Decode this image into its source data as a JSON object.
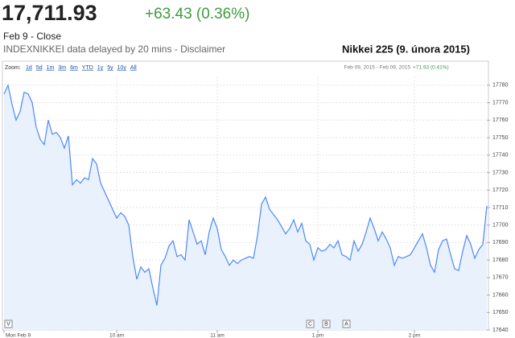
{
  "quote": {
    "price": "17,711.93",
    "change": "+63.43 (0.36%)",
    "status": "Feb 9 - Close",
    "source": "INDEXNIKKEI data delayed by 20 mins - Disclaimer"
  },
  "toolbar": {
    "zoom_label": "Zoom:",
    "options": [
      "1d",
      "5d",
      "1m",
      "3m",
      "6m",
      "YTD",
      "1y",
      "5y",
      "10y",
      "All"
    ],
    "range": "Feb 09, 2015 - Feb 09, 2015",
    "range_change": "+71.93 (0.41%)"
  },
  "chart_data": {
    "type": "line",
    "title": "Nikkei 225 (9. února 2015)",
    "series": [
      {
        "color": "#4d89f9",
        "values": [
          17775,
          17780,
          17769,
          17760,
          17765,
          17776,
          17775,
          17770,
          17756,
          17749,
          17746,
          17760,
          17752,
          17753,
          17750,
          17744,
          17751,
          17723,
          17726,
          17724,
          17727,
          17726,
          17738,
          17735,
          17724,
          17719,
          17714,
          17709,
          17704,
          17707,
          17705,
          17700,
          17682,
          17669,
          17676,
          17673,
          17675,
          17664,
          17654,
          17677,
          17681,
          17688,
          17691,
          17682,
          17683,
          17680,
          17703,
          17696,
          17689,
          17691,
          17683,
          17696,
          17704,
          17698,
          17686,
          17682,
          17677,
          17680,
          17678,
          17680,
          17681,
          17682,
          17681,
          17694,
          17712,
          17716,
          17709,
          17706,
          17703,
          17699,
          17695,
          17698,
          17703,
          17696,
          17701,
          17691,
          17689,
          17680,
          17687,
          17685,
          17686,
          17689,
          17687,
          17691,
          17683,
          17682,
          17680,
          17691,
          17685,
          17689,
          17696,
          17704,
          17698,
          17691,
          17696,
          17692,
          17687,
          17677,
          17682,
          17681,
          17682,
          17683,
          17687,
          17691,
          17695,
          17687,
          17677,
          17673,
          17686,
          17691,
          17692,
          17683,
          17675,
          17674,
          17685,
          17694,
          17689,
          17681,
          17686,
          17689,
          17711
        ]
      }
    ],
    "xlim": [
      0,
      120
    ],
    "xticks": [
      {
        "value": 0,
        "label": "Mon Feb 9"
      },
      {
        "value": 28,
        "label": "10 am"
      },
      {
        "value": 53,
        "label": "11 am"
      },
      {
        "value": 78,
        "label": "1 pm"
      },
      {
        "value": 102,
        "label": "2 pm"
      }
    ],
    "ylim": [
      17640,
      17785
    ],
    "yticks": [
      17640,
      17650,
      17660,
      17670,
      17680,
      17690,
      17700,
      17710,
      17720,
      17730,
      17740,
      17750,
      17760,
      17770,
      17780
    ],
    "grid": true,
    "flags": [
      {
        "label": "V",
        "x": 1
      },
      {
        "label": "C",
        "x": 76
      },
      {
        "label": "B",
        "x": 80
      },
      {
        "label": "A",
        "x": 85
      }
    ]
  }
}
